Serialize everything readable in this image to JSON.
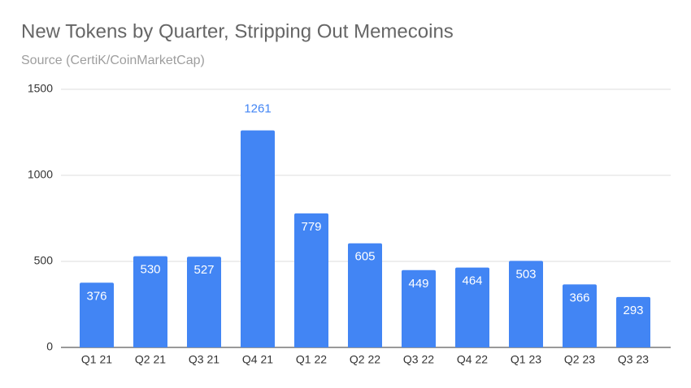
{
  "chart_data": {
    "type": "bar",
    "title": "New Tokens by Quarter, Stripping Out Memecoins",
    "subtitle": "Source (CertiK/CoinMarketCap)",
    "categories": [
      "Q1 21",
      "Q2 21",
      "Q3 21",
      "Q4 21",
      "Q1 22",
      "Q2 22",
      "Q3 22",
      "Q4 22",
      "Q1 23",
      "Q2 23",
      "Q3 23"
    ],
    "values": [
      376,
      530,
      527,
      1261,
      779,
      605,
      449,
      464,
      503,
      366,
      293
    ],
    "color": "#4285f4",
    "ylim": [
      0,
      1500
    ],
    "yticks": [
      0,
      500,
      1000,
      1500
    ],
    "grid": true
  }
}
